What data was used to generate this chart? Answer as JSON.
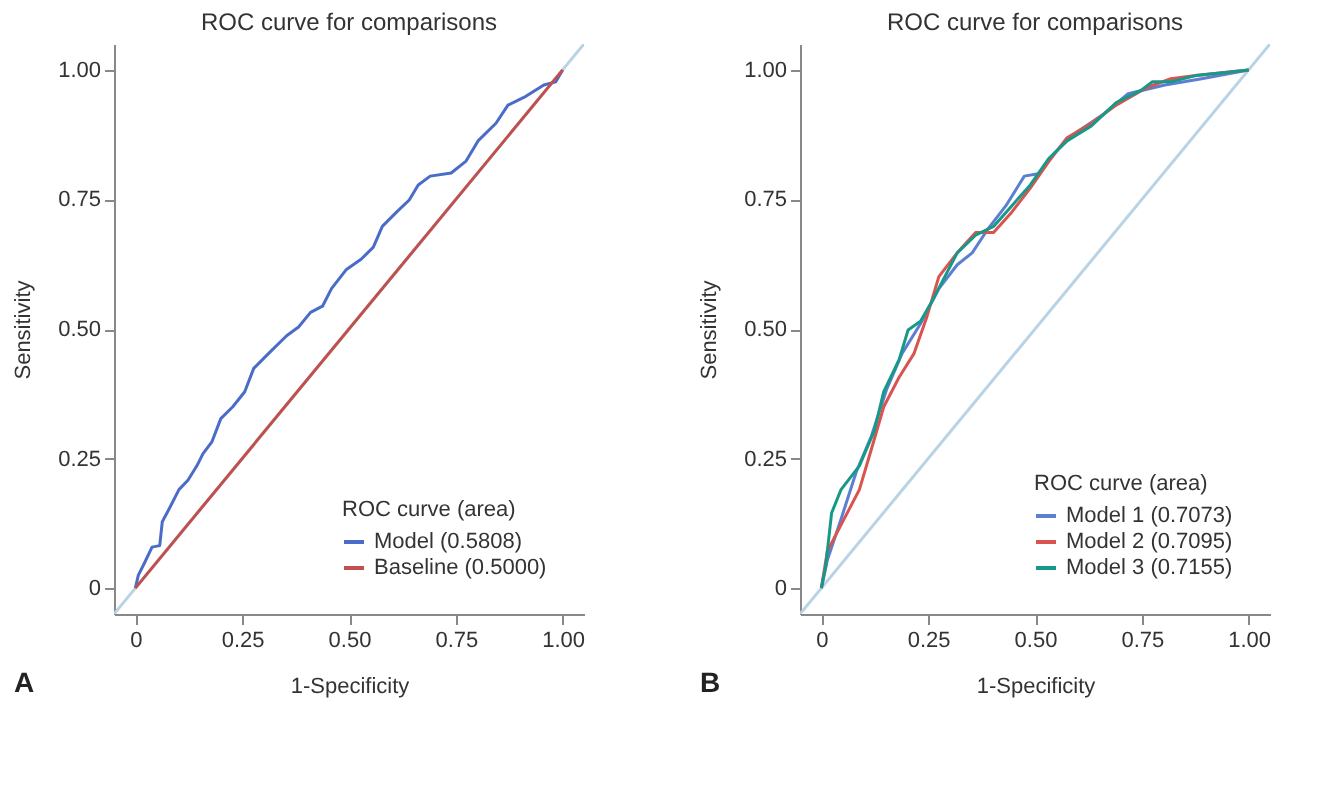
{
  "chart_data": [
    {
      "type": "line",
      "title": "ROC curve for comparisons",
      "xlabel": "1-Specificity",
      "ylabel": "Sensitivity",
      "legend_title": "ROC curve (area)",
      "legend": "bottom right",
      "grid": false,
      "annotations": [
        "A"
      ],
      "xlim": [
        -0.05,
        1.05
      ],
      "ylim": [
        -0.05,
        1.05
      ],
      "xticks": [
        {
          "value": 0,
          "label": "0"
        },
        {
          "value": 0.25,
          "label": "0.25"
        },
        {
          "value": 0.5,
          "label": "0.50"
        },
        {
          "value": 0.75,
          "label": "0.75"
        },
        {
          "value": 1,
          "label": "1.00"
        }
      ],
      "yticks": [
        {
          "value": 0,
          "label": "0"
        },
        {
          "value": 0.25,
          "label": "0.25"
        },
        {
          "value": 0.5,
          "label": "0.50"
        },
        {
          "value": 0.75,
          "label": "0.75"
        },
        {
          "value": 1,
          "label": "1.00"
        }
      ],
      "series": [
        {
          "color": "#b9d3e6",
          "x": [
            -0.05,
            1.05
          ],
          "values": [
            -0.05,
            1.05
          ]
        },
        {
          "name": "Model (0.5808)",
          "color": "#4a6cc8",
          "x": [
            0,
            0.007,
            0.021,
            0.039,
            0.057,
            0.063,
            0.081,
            0.102,
            0.123,
            0.144,
            0.158,
            0.179,
            0.2,
            0.228,
            0.256,
            0.277,
            0.312,
            0.354,
            0.382,
            0.41,
            0.438,
            0.459,
            0.494,
            0.529,
            0.557,
            0.578,
            0.613,
            0.641,
            0.662,
            0.69,
            0.739,
            0.774,
            0.802,
            0.844,
            0.872,
            0.914,
            0.956,
            0.984,
            1
          ],
          "values": [
            0,
            0.025,
            0.048,
            0.079,
            0.082,
            0.128,
            0.156,
            0.19,
            0.208,
            0.236,
            0.259,
            0.282,
            0.327,
            0.35,
            0.379,
            0.424,
            0.453,
            0.487,
            0.504,
            0.532,
            0.544,
            0.578,
            0.615,
            0.635,
            0.658,
            0.698,
            0.727,
            0.749,
            0.778,
            0.795,
            0.801,
            0.824,
            0.863,
            0.897,
            0.932,
            0.949,
            0.971,
            0.977,
            1
          ]
        },
        {
          "name": "Baseline (0.5000)",
          "color": "#c0504d",
          "x": [
            0,
            1
          ],
          "values": [
            0,
            1
          ]
        }
      ]
    },
    {
      "type": "line",
      "title": "ROC curve for comparisons",
      "xlabel": "1-Specificity",
      "ylabel": "Sensitivity",
      "legend_title": "ROC curve (area)",
      "legend": "bottom right",
      "grid": false,
      "annotations": [
        "B"
      ],
      "xlim": [
        -0.05,
        1.05
      ],
      "ylim": [
        -0.05,
        1.05
      ],
      "xticks": [
        {
          "value": 0,
          "label": "0"
        },
        {
          "value": 0.25,
          "label": "0.25"
        },
        {
          "value": 0.5,
          "label": "0.50"
        },
        {
          "value": 0.75,
          "label": "0.75"
        },
        {
          "value": 1,
          "label": "1.00"
        }
      ],
      "yticks": [
        {
          "value": 0,
          "label": "0"
        },
        {
          "value": 0.25,
          "label": "0.25"
        },
        {
          "value": 0.5,
          "label": "0.50"
        },
        {
          "value": 0.75,
          "label": "0.75"
        },
        {
          "value": 1,
          "label": "1.00"
        }
      ],
      "series": [
        {
          "color": "#b9d3e6",
          "x": [
            -0.05,
            1.05
          ],
          "values": [
            -0.05,
            1.05
          ]
        },
        {
          "name": "Model 1 (0.7073)",
          "color": "#5b7fd1",
          "x": [
            0,
            0.014,
            0.046,
            0.082,
            0.117,
            0.153,
            0.189,
            0.232,
            0.275,
            0.318,
            0.353,
            0.389,
            0.432,
            0.475,
            0.511,
            0.546,
            0.589,
            0.661,
            0.718,
            0.804,
            0.89,
            1
          ],
          "values": [
            0,
            0.054,
            0.133,
            0.225,
            0.293,
            0.384,
            0.453,
            0.51,
            0.578,
            0.624,
            0.647,
            0.692,
            0.738,
            0.795,
            0.8,
            0.84,
            0.875,
            0.915,
            0.954,
            0.971,
            0.983,
            1
          ]
        },
        {
          "name": "Model 2 (0.7095)",
          "color": "#d9534f",
          "x": [
            0,
            0.014,
            0.046,
            0.089,
            0.117,
            0.146,
            0.182,
            0.217,
            0.246,
            0.275,
            0.318,
            0.361,
            0.403,
            0.446,
            0.489,
            0.532,
            0.575,
            0.632,
            0.69,
            0.762,
            0.818,
            0.876,
            1
          ],
          "values": [
            0,
            0.071,
            0.122,
            0.19,
            0.268,
            0.35,
            0.407,
            0.453,
            0.521,
            0.601,
            0.647,
            0.686,
            0.686,
            0.726,
            0.772,
            0.823,
            0.869,
            0.897,
            0.932,
            0.966,
            0.983,
            0.989,
            1
          ]
        },
        {
          "name": "Model 3 (0.7155)",
          "color": "#17998a",
          "x": [
            0,
            0.01,
            0.024,
            0.046,
            0.089,
            0.124,
            0.146,
            0.182,
            0.203,
            0.232,
            0.26,
            0.289,
            0.318,
            0.361,
            0.403,
            0.446,
            0.489,
            0.532,
            0.575,
            0.632,
            0.69,
            0.747,
            0.775,
            0.818,
            0.876,
            0.933,
            1
          ],
          "values": [
            0,
            0.042,
            0.145,
            0.19,
            0.236,
            0.304,
            0.379,
            0.441,
            0.498,
            0.515,
            0.555,
            0.601,
            0.647,
            0.681,
            0.698,
            0.738,
            0.778,
            0.829,
            0.863,
            0.892,
            0.937,
            0.96,
            0.977,
            0.977,
            0.989,
            0.994,
            1
          ]
        }
      ]
    }
  ]
}
